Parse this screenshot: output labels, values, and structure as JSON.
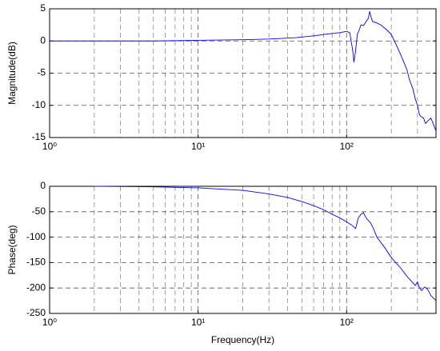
{
  "chart_data": [
    {
      "type": "line",
      "ylabel": "Magnitude(dB)",
      "xscale": "log",
      "grid": true,
      "minor_grid": true,
      "xlim": [
        1,
        400
      ],
      "xticks": [
        {
          "value": 1,
          "label": "10⁰"
        },
        {
          "value": 10,
          "label": "10¹"
        },
        {
          "value": 100,
          "label": "10²"
        }
      ],
      "ylim": [
        -15,
        5
      ],
      "yticks": [
        -15,
        -10,
        -5,
        0,
        5
      ],
      "color": "#0000ff",
      "x": [
        1,
        2,
        5,
        10,
        20,
        30,
        45,
        60,
        75,
        90,
        100,
        105,
        110,
        112,
        115,
        118,
        122,
        125,
        130,
        135,
        140,
        143,
        147,
        150,
        160,
        170,
        185,
        200,
        210,
        225,
        240,
        255,
        265,
        280,
        290,
        300,
        310,
        320,
        330,
        340,
        350,
        360,
        370,
        385,
        400
      ],
      "values": [
        0,
        0,
        0,
        0.1,
        0.2,
        0.3,
        0.5,
        0.8,
        1.1,
        1.3,
        1.5,
        1.3,
        -1.5,
        -3.3,
        -1.5,
        1,
        1.8,
        2.5,
        2.4,
        3,
        3.5,
        4.6,
        3.5,
        3,
        2.8,
        2.5,
        1.8,
        1,
        0,
        -1.5,
        -3,
        -4.5,
        -6,
        -7.5,
        -9,
        -10,
        -11.5,
        -11.8,
        -12,
        -12.8,
        -12.5,
        -12.2,
        -12,
        -13,
        -14
      ]
    },
    {
      "type": "line",
      "ylabel": "Phase(deg)",
      "xlabel": "Frequency(Hz)",
      "xscale": "log",
      "grid": true,
      "minor_grid": true,
      "xlim": [
        1,
        400
      ],
      "xticks": [
        {
          "value": 1,
          "label": "10⁰"
        },
        {
          "value": 10,
          "label": "10¹"
        },
        {
          "value": 100,
          "label": "10²"
        }
      ],
      "ylim": [
        -250,
        0
      ],
      "yticks": [
        -250,
        -200,
        -150,
        -100,
        -50,
        0
      ],
      "color": "#0000ff",
      "x": [
        2,
        5,
        10,
        20,
        30,
        40,
        50,
        60,
        70,
        80,
        90,
        100,
        108,
        115,
        120,
        125,
        130,
        135,
        145,
        150,
        160,
        180,
        200,
        230,
        260,
        280,
        290,
        300,
        310,
        320,
        335,
        350,
        370,
        385,
        400
      ],
      "values": [
        0,
        -1,
        -3,
        -8,
        -15,
        -22,
        -30,
        -38,
        -46,
        -55,
        -62,
        -70,
        -76,
        -83,
        -62,
        -55,
        -52,
        -62,
        -72,
        -80,
        -100,
        -120,
        -140,
        -160,
        -180,
        -190,
        -195,
        -188,
        -200,
        -205,
        -198,
        -202,
        -215,
        -220,
        -225
      ]
    }
  ]
}
